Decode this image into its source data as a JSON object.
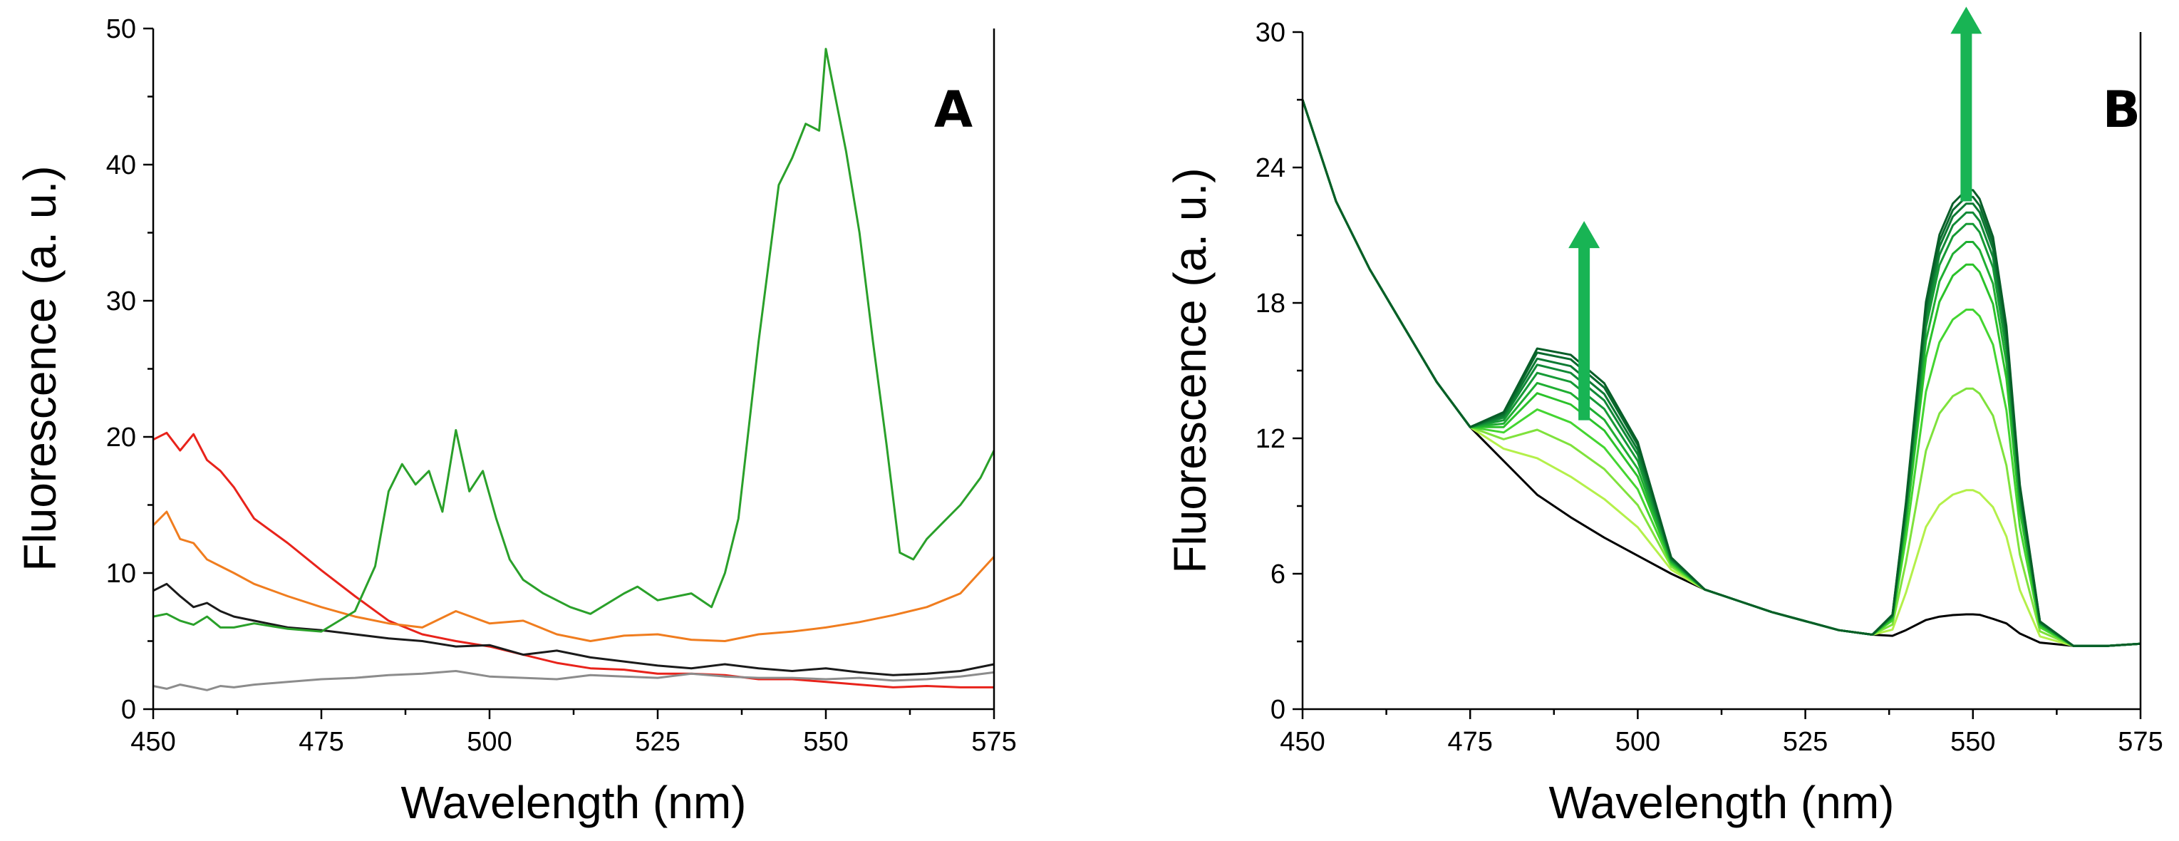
{
  "chart_data": [
    {
      "panel": "A",
      "type": "line",
      "xlabel": "Wavelength (nm)",
      "ylabel": "Fluorescence (a. u.)",
      "xlim": [
        450,
        575
      ],
      "ylim": [
        0,
        50
      ],
      "xticks": [
        450,
        475,
        500,
        525,
        550,
        575
      ],
      "yticks": [
        0,
        10,
        20,
        30,
        40,
        50
      ],
      "grid": false,
      "series": [
        {
          "color": "#e8231b",
          "x": [
            450,
            452,
            454,
            456,
            458,
            460,
            462,
            465,
            470,
            475,
            480,
            485,
            490,
            495,
            500,
            505,
            510,
            515,
            520,
            525,
            530,
            535,
            540,
            545,
            550,
            555,
            560,
            565,
            570,
            575
          ],
          "y": [
            19.8,
            20.3,
            19.0,
            20.2,
            18.3,
            17.5,
            16.3,
            14.0,
            12.2,
            10.2,
            8.3,
            6.5,
            5.5,
            5.0,
            4.6,
            4.0,
            3.4,
            3.0,
            2.9,
            2.6,
            2.6,
            2.5,
            2.2,
            2.2,
            2.0,
            1.8,
            1.6,
            1.7,
            1.6,
            1.6
          ]
        },
        {
          "color": "#f07d1f",
          "x": [
            450,
            452,
            454,
            456,
            458,
            460,
            462,
            465,
            470,
            475,
            480,
            485,
            490,
            495,
            500,
            505,
            510,
            515,
            520,
            525,
            530,
            535,
            540,
            545,
            550,
            555,
            560,
            565,
            570,
            575
          ],
          "y": [
            13.5,
            14.5,
            12.5,
            12.2,
            11.0,
            10.5,
            10.0,
            9.2,
            8.3,
            7.5,
            6.8,
            6.3,
            6.0,
            7.2,
            6.3,
            6.5,
            5.5,
            5.0,
            5.4,
            5.5,
            5.1,
            5.0,
            5.5,
            5.7,
            6.0,
            6.4,
            6.9,
            7.5,
            8.5,
            11.2
          ]
        },
        {
          "color": "#1a1a1a",
          "x": [
            450,
            452,
            454,
            456,
            458,
            460,
            462,
            465,
            470,
            475,
            480,
            485,
            490,
            495,
            500,
            505,
            510,
            515,
            520,
            525,
            530,
            535,
            540,
            545,
            550,
            555,
            560,
            565,
            570,
            575
          ],
          "y": [
            8.7,
            9.2,
            8.3,
            7.5,
            7.8,
            7.2,
            6.8,
            6.5,
            6.0,
            5.8,
            5.5,
            5.2,
            5.0,
            4.6,
            4.7,
            4.0,
            4.3,
            3.8,
            3.5,
            3.2,
            3.0,
            3.3,
            3.0,
            2.8,
            3.0,
            2.7,
            2.5,
            2.6,
            2.8,
            3.3
          ]
        },
        {
          "color": "#2aa02a",
          "x": [
            450,
            452,
            454,
            456,
            458,
            460,
            462,
            465,
            470,
            475,
            480,
            483,
            485,
            487,
            489,
            491,
            493,
            495,
            497,
            499,
            501,
            503,
            505,
            508,
            512,
            515,
            520,
            522,
            525,
            530,
            533,
            535,
            537,
            540,
            543,
            545,
            547,
            549,
            550,
            551,
            553,
            555,
            557,
            559,
            561,
            563,
            565,
            567,
            570,
            573,
            575
          ],
          "y": [
            6.8,
            7.0,
            6.5,
            6.2,
            6.8,
            6.0,
            6.0,
            6.3,
            5.9,
            5.7,
            7.2,
            10.5,
            16.0,
            18.0,
            16.5,
            17.5,
            14.5,
            20.5,
            16.0,
            17.5,
            14.0,
            11.0,
            9.5,
            8.5,
            7.5,
            7.0,
            8.5,
            9.0,
            8.0,
            8.5,
            7.5,
            10.0,
            14.0,
            27.0,
            38.5,
            40.5,
            43.0,
            42.5,
            48.5,
            46.0,
            41.0,
            35.0,
            27.0,
            19.5,
            11.5,
            11.0,
            12.5,
            13.5,
            15.0,
            17.0,
            19.0
          ]
        },
        {
          "color": "#8c8c8c",
          "x": [
            450,
            452,
            454,
            456,
            458,
            460,
            462,
            465,
            470,
            475,
            480,
            485,
            490,
            495,
            500,
            505,
            510,
            515,
            520,
            525,
            530,
            535,
            540,
            545,
            550,
            555,
            560,
            565,
            570,
            575
          ],
          "y": [
            1.7,
            1.5,
            1.8,
            1.6,
            1.4,
            1.7,
            1.6,
            1.8,
            2.0,
            2.2,
            2.3,
            2.5,
            2.6,
            2.8,
            2.4,
            2.3,
            2.2,
            2.5,
            2.4,
            2.3,
            2.6,
            2.4,
            2.3,
            2.3,
            2.2,
            2.3,
            2.1,
            2.2,
            2.4,
            2.7
          ]
        }
      ]
    },
    {
      "panel": "B",
      "type": "line",
      "xlabel": "Wavelength (nm)",
      "ylabel": "Fluorescence (a. u.)",
      "xlim": [
        450,
        575
      ],
      "ylim": [
        0,
        30
      ],
      "xticks": [
        450,
        475,
        500,
        525,
        550,
        575
      ],
      "yticks": [
        0,
        6,
        12,
        18,
        24,
        30
      ],
      "grid": false,
      "base_x": [
        450,
        455,
        460,
        465,
        470,
        475,
        480,
        485,
        490,
        495,
        500,
        505,
        510,
        515,
        520,
        525,
        530,
        535,
        538,
        540,
        543,
        545,
        547,
        549,
        550,
        551,
        553,
        555,
        557,
        560,
        565,
        570,
        575
      ],
      "baseline": [
        27.0,
        22.5,
        19.5,
        17.0,
        14.5,
        12.5,
        11.0,
        9.5,
        8.5,
        7.6,
        6.8,
        6.0,
        5.3,
        4.8,
        4.3,
        3.9,
        3.5,
        3.3,
        3.2,
        3.2,
        3.2,
        3.2,
        3.2,
        3.2,
        3.2,
        3.2,
        3.1,
        3.1,
        3.0,
        2.9,
        2.8,
        2.8,
        2.9
      ],
      "band_shape_500": [
        0,
        0,
        0,
        0,
        0,
        0,
        0.3,
        0.9,
        1.0,
        0.95,
        0.7,
        0.1,
        0,
        0,
        0,
        0,
        0,
        0,
        0,
        0,
        0,
        0,
        0,
        0,
        0,
        0,
        0,
        0,
        0,
        0,
        0,
        0,
        0
      ],
      "band_shape_550": [
        0,
        0,
        0,
        0,
        0,
        0,
        0,
        0,
        0,
        0,
        0,
        0,
        0,
        0,
        0,
        0,
        0,
        0,
        0.05,
        0.3,
        0.75,
        0.9,
        0.97,
        1.0,
        1.0,
        0.98,
        0.9,
        0.7,
        0.35,
        0.05,
        0,
        0,
        0
      ],
      "series": [
        {
          "color": "#000000",
          "band500": 0.0,
          "band550": 1.0
        },
        {
          "color": "#b4f04a",
          "band500": 1.8,
          "band550": 6.5
        },
        {
          "color": "#7fe23c",
          "band500": 3.2,
          "band550": 11.0
        },
        {
          "color": "#44d531",
          "band500": 4.2,
          "band550": 14.5
        },
        {
          "color": "#2bc22a",
          "band500": 5.0,
          "band550": 16.5
        },
        {
          "color": "#1fae32",
          "band500": 5.5,
          "band550": 17.5
        },
        {
          "color": "#169a36",
          "band500": 6.0,
          "band550": 18.3
        },
        {
          "color": "#118a37",
          "band500": 6.4,
          "band550": 18.8
        },
        {
          "color": "#0d7a33",
          "band500": 6.7,
          "band550": 19.2
        },
        {
          "color": "#0a6b2e",
          "band500": 7.0,
          "band550": 19.5
        },
        {
          "color": "#085e28",
          "band500": 7.2,
          "band550": 19.8
        }
      ],
      "arrows": [
        {
          "x": 492,
          "y_from": 12.8,
          "y_to": 21.5,
          "color": "#18b454"
        },
        {
          "x": 549,
          "y_from": 22.5,
          "y_to": 31.0,
          "color": "#18b454"
        }
      ]
    }
  ]
}
